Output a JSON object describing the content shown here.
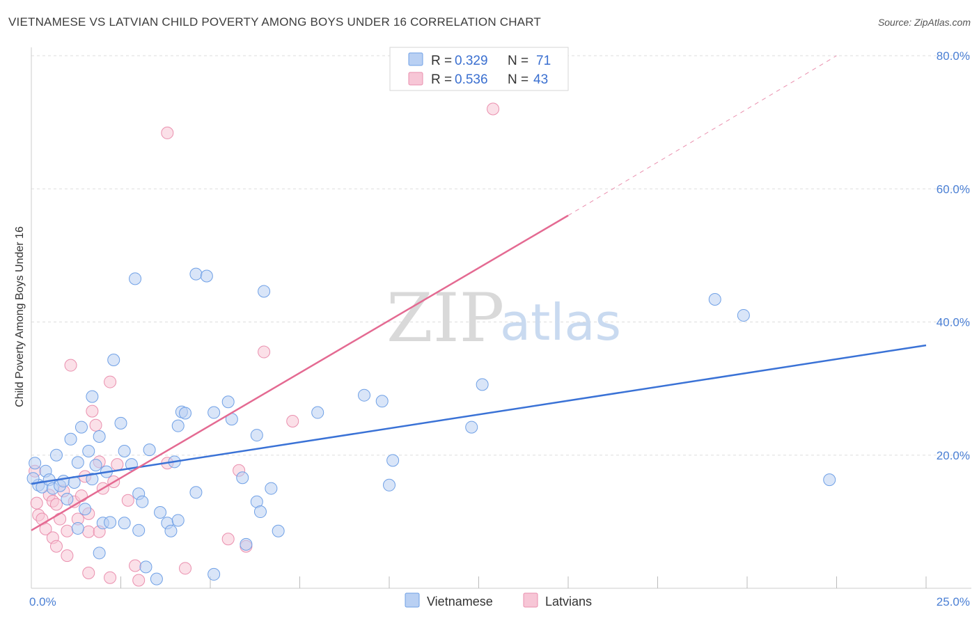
{
  "title": "VIETNAMESE VS LATVIAN CHILD POVERTY AMONG BOYS UNDER 16 CORRELATION CHART",
  "source": "Source: ZipAtlas.com",
  "watermark": {
    "zip": "ZIP",
    "atlas": "atlas"
  },
  "legend": {
    "r_label": "R =",
    "n_label": "N =",
    "rows": [
      {
        "r": "0.329",
        "n": "71"
      },
      {
        "r": "0.536",
        "n": "43"
      }
    ]
  },
  "colors": {
    "vietnamese": "#6fa0e6",
    "vietnamese_fill": "#b9d0f3",
    "latvians": "#ea8fae",
    "latvians_fill": "#f7c6d6",
    "viet_line": "#3a72d6",
    "latv_line": "#e46a92",
    "grid": "#dddddd"
  },
  "chart_data": {
    "type": "scatter",
    "title": "VIETNAMESE VS LATVIAN CHILD POVERTY AMONG BOYS UNDER 16 CORRELATION CHART",
    "xlabel": "",
    "ylabel": "Child Poverty Among Boys Under 16",
    "xlim": [
      0,
      25
    ],
    "ylim": [
      0,
      80
    ],
    "x_tick_labels": [
      "0.0%",
      "25.0%"
    ],
    "y_tick_labels": [
      "20.0%",
      "40.0%",
      "60.0%",
      "80.0%"
    ],
    "y_ticks": [
      20,
      40,
      60,
      80
    ],
    "grid": true,
    "legend_position": "top-center",
    "series": [
      {
        "name": "Vietnamese",
        "r": 0.329,
        "n": 71,
        "trend": {
          "x": [
            0,
            25
          ],
          "y": [
            15.7,
            36.5
          ]
        },
        "points": [
          [
            0.1,
            18.8
          ],
          [
            0.2,
            15.5
          ],
          [
            0.3,
            15.2
          ],
          [
            0.4,
            17.6
          ],
          [
            0.5,
            16.3
          ],
          [
            0.6,
            15.0
          ],
          [
            0.7,
            20.0
          ],
          [
            0.8,
            15.4
          ],
          [
            0.9,
            16.1
          ],
          [
            1.0,
            13.4
          ],
          [
            1.1,
            22.4
          ],
          [
            1.2,
            15.9
          ],
          [
            1.3,
            9.0
          ],
          [
            1.3,
            18.9
          ],
          [
            1.4,
            24.2
          ],
          [
            1.5,
            11.9
          ],
          [
            1.6,
            20.6
          ],
          [
            1.7,
            16.4
          ],
          [
            1.7,
            28.8
          ],
          [
            1.8,
            18.5
          ],
          [
            1.9,
            22.8
          ],
          [
            1.9,
            5.3
          ],
          [
            2.0,
            9.8
          ],
          [
            2.1,
            17.5
          ],
          [
            2.2,
            9.9
          ],
          [
            2.3,
            34.3
          ],
          [
            2.5,
            24.8
          ],
          [
            2.6,
            9.8
          ],
          [
            2.6,
            20.6
          ],
          [
            2.8,
            18.6
          ],
          [
            2.9,
            46.5
          ],
          [
            3.0,
            8.7
          ],
          [
            3.0,
            14.2
          ],
          [
            3.1,
            13.0
          ],
          [
            3.2,
            3.2
          ],
          [
            3.3,
            20.8
          ],
          [
            3.5,
            1.4
          ],
          [
            3.6,
            11.4
          ],
          [
            3.8,
            9.8
          ],
          [
            3.9,
            8.6
          ],
          [
            4.0,
            19.0
          ],
          [
            4.1,
            24.4
          ],
          [
            4.1,
            10.2
          ],
          [
            4.2,
            26.5
          ],
          [
            4.3,
            26.3
          ],
          [
            4.6,
            47.2
          ],
          [
            4.6,
            14.4
          ],
          [
            4.9,
            46.9
          ],
          [
            5.1,
            26.4
          ],
          [
            5.1,
            2.1
          ],
          [
            5.5,
            28.0
          ],
          [
            5.6,
            25.4
          ],
          [
            5.9,
            16.6
          ],
          [
            6.0,
            6.6
          ],
          [
            6.3,
            13.0
          ],
          [
            6.3,
            23.0
          ],
          [
            6.4,
            11.5
          ],
          [
            6.5,
            44.6
          ],
          [
            6.7,
            15.0
          ],
          [
            6.9,
            8.6
          ],
          [
            8.0,
            26.4
          ],
          [
            9.3,
            29.0
          ],
          [
            9.8,
            28.1
          ],
          [
            10.0,
            15.5
          ],
          [
            10.1,
            19.2
          ],
          [
            12.3,
            24.2
          ],
          [
            12.6,
            30.6
          ],
          [
            19.1,
            43.4
          ],
          [
            19.9,
            41.0
          ],
          [
            22.3,
            16.3
          ],
          [
            0.05,
            16.5
          ]
        ]
      },
      {
        "name": "Latvians",
        "r": 0.536,
        "n": 43,
        "trend_solid": {
          "x": [
            0,
            15.0
          ],
          "y": [
            8.7,
            56.0
          ]
        },
        "trend_dashed": {
          "x": [
            15.0,
            22.5
          ],
          "y": [
            56.0,
            80.0
          ]
        },
        "points": [
          [
            0.1,
            17.6
          ],
          [
            0.15,
            12.8
          ],
          [
            0.2,
            11.0
          ],
          [
            0.3,
            10.4
          ],
          [
            0.4,
            8.9
          ],
          [
            0.5,
            14.0
          ],
          [
            0.6,
            13.1
          ],
          [
            0.6,
            7.6
          ],
          [
            0.7,
            12.6
          ],
          [
            0.7,
            6.3
          ],
          [
            0.8,
            10.4
          ],
          [
            0.9,
            14.6
          ],
          [
            1.0,
            4.9
          ],
          [
            1.0,
            8.6
          ],
          [
            1.1,
            33.5
          ],
          [
            1.2,
            13.0
          ],
          [
            1.3,
            10.4
          ],
          [
            1.4,
            13.9
          ],
          [
            1.5,
            16.8
          ],
          [
            1.6,
            11.2
          ],
          [
            1.6,
            8.5
          ],
          [
            1.6,
            2.3
          ],
          [
            1.7,
            26.6
          ],
          [
            1.8,
            24.5
          ],
          [
            1.9,
            19.0
          ],
          [
            1.9,
            8.5
          ],
          [
            2.0,
            15.0
          ],
          [
            2.2,
            1.6
          ],
          [
            2.2,
            31.0
          ],
          [
            2.3,
            16.0
          ],
          [
            2.4,
            18.6
          ],
          [
            2.7,
            13.2
          ],
          [
            2.9,
            3.4
          ],
          [
            3.0,
            1.2
          ],
          [
            3.8,
            68.4
          ],
          [
            3.8,
            18.8
          ],
          [
            4.3,
            3.0
          ],
          [
            5.5,
            7.4
          ],
          [
            5.8,
            17.7
          ],
          [
            6.0,
            6.3
          ],
          [
            6.5,
            35.5
          ],
          [
            7.3,
            25.1
          ],
          [
            12.9,
            72.0
          ]
        ]
      }
    ]
  },
  "bottom_legend": [
    {
      "label": "Vietnamese"
    },
    {
      "label": "Latvians"
    }
  ]
}
